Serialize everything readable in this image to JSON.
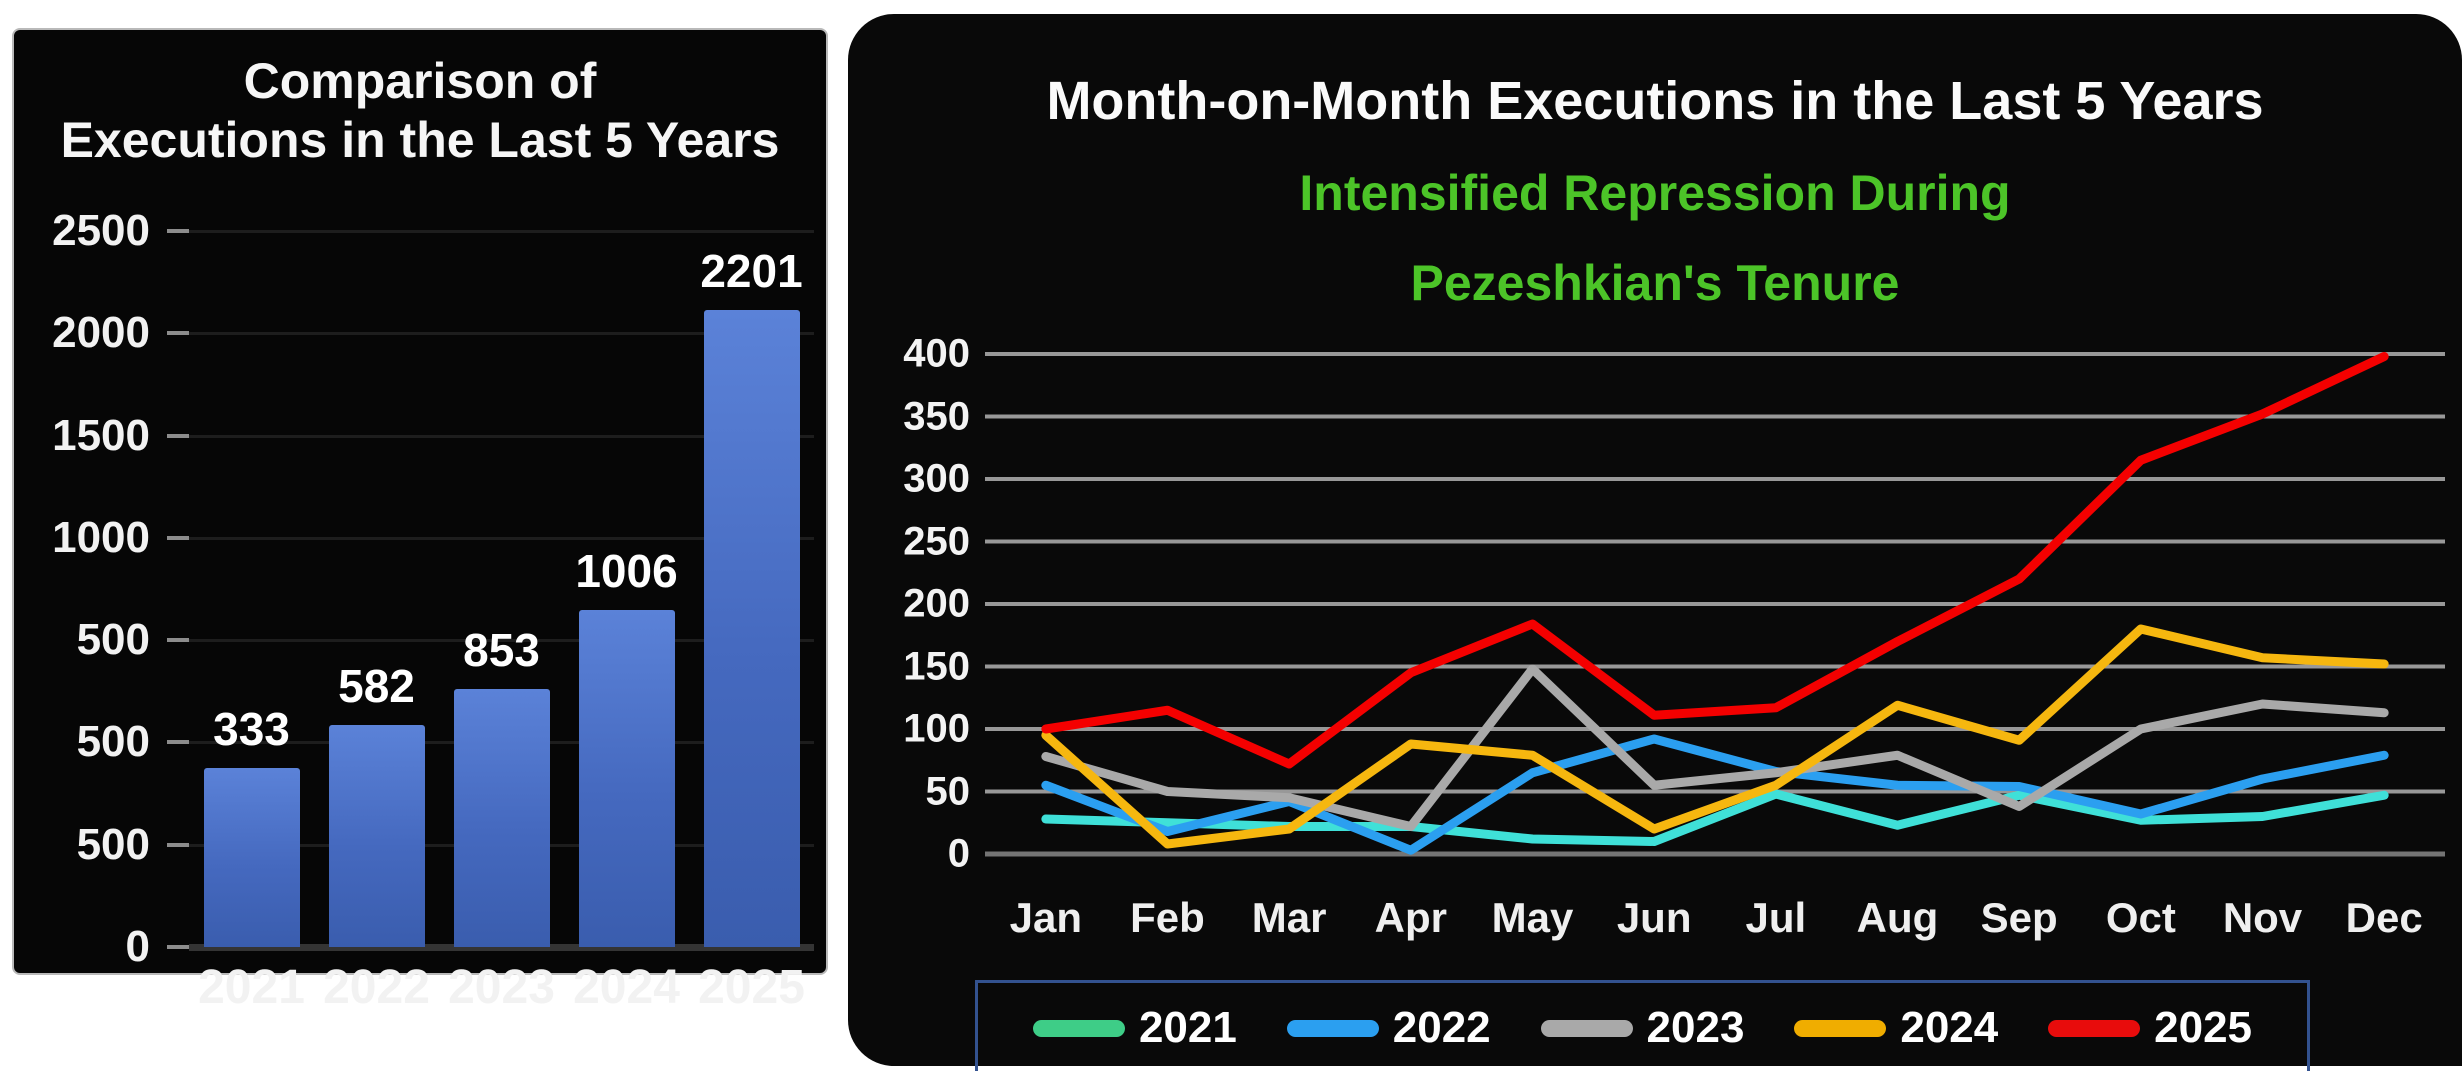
{
  "page": {
    "background": "#ffffff"
  },
  "colors": {
    "panel_background": "#060606",
    "bar_fill_top": "#5b82d8",
    "bar_fill_bottom": "#3a5dae",
    "subtitle_green": "#4cc428",
    "legend_border": "#33528f",
    "gridline_right_chart": "#989898",
    "gridline_left_chart": "#1d1d1d"
  },
  "chart_data": [
    {
      "type": "bar",
      "title": "Comparison of Executions in the Last 5 Years",
      "title_lines": [
        "Comparison of",
        "Executions in the Last 5 Years"
      ],
      "categories": [
        "2021",
        "2022",
        "2023",
        "2024",
        "2025"
      ],
      "values": [
        333,
        582,
        853,
        1006,
        2201
      ],
      "xlabel": "",
      "ylabel": "",
      "ylim": [
        0,
        2500
      ],
      "y_tick_labels_as_shown": [
        "2500",
        "2000",
        "1500",
        "1000",
        "500",
        "500",
        "500",
        "0"
      ],
      "bar_visual_height_pct": [
        25,
        31,
        36,
        47,
        89
      ],
      "bar_color": "#4569bf",
      "grid": true,
      "legend_position": "none"
    },
    {
      "type": "line",
      "title": "Month-on-Month Executions in the Last 5 Years",
      "subtitle_lines": [
        "Intensified Repression During",
        "Pezeshkian's Tenure"
      ],
      "subtitle_color": "#4cc428",
      "categories": [
        "Jan",
        "Feb",
        "Mar",
        "Apr",
        "May",
        "Jun",
        "Jul",
        "Aug",
        "Sep",
        "Oct",
        "Nov",
        "Dec"
      ],
      "xlabel": "",
      "ylabel": "",
      "ylim": [
        0,
        400
      ],
      "y_tick_step": 50,
      "grid": true,
      "legend_position": "bottom",
      "series": [
        {
          "name": "2021",
          "line_color": "#3fe0d8",
          "legend_color": "#3ecd87",
          "values": [
            28,
            25,
            22,
            22,
            12,
            10,
            48,
            23,
            47,
            27,
            30,
            47
          ]
        },
        {
          "name": "2022",
          "line_color": "#2b9ff0",
          "legend_color": "#2b9ff0",
          "values": [
            55,
            18,
            42,
            3,
            65,
            92,
            66,
            55,
            54,
            32,
            60,
            79
          ]
        },
        {
          "name": "2023",
          "line_color": "#a9a9a9",
          "legend_color": "#a9a9a9",
          "values": [
            78,
            50,
            45,
            22,
            148,
            55,
            65,
            79,
            38,
            100,
            120,
            113
          ]
        },
        {
          "name": "2024",
          "line_color": "#f6b70f",
          "legend_color": "#f0ad00",
          "values": [
            95,
            8,
            20,
            88,
            79,
            20,
            55,
            119,
            91,
            180,
            157,
            152
          ]
        },
        {
          "name": "2025",
          "line_color": "#f40000",
          "legend_color": "#e80c0c",
          "values": [
            100,
            115,
            72,
            145,
            184,
            111,
            117,
            170,
            220,
            315,
            352,
            398
          ]
        }
      ]
    }
  ]
}
